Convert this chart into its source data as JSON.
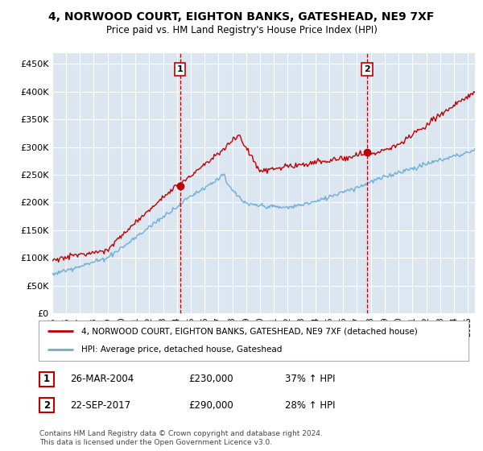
{
  "title": "4, NORWOOD COURT, EIGHTON BANKS, GATESHEAD, NE9 7XF",
  "subtitle": "Price paid vs. HM Land Registry's House Price Index (HPI)",
  "ylabel_ticks": [
    "£0",
    "£50K",
    "£100K",
    "£150K",
    "£200K",
    "£250K",
    "£300K",
    "£350K",
    "£400K",
    "£450K"
  ],
  "ytick_values": [
    0,
    50000,
    100000,
    150000,
    200000,
    250000,
    300000,
    350000,
    400000,
    450000
  ],
  "ylim": [
    0,
    470000
  ],
  "xlim_start": 1995.0,
  "xlim_end": 2025.5,
  "sale1_x": 2004.23,
  "sale1_y": 230000,
  "sale2_x": 2017.73,
  "sale2_y": 290000,
  "hpi_color": "#6baed6",
  "price_color": "#c00000",
  "legend_label1": "4, NORWOOD COURT, EIGHTON BANKS, GATESHEAD, NE9 7XF (detached house)",
  "legend_label2": "HPI: Average price, detached house, Gateshead",
  "table_row1": [
    "1",
    "26-MAR-2004",
    "£230,000",
    "37% ↑ HPI"
  ],
  "table_row2": [
    "2",
    "22-SEP-2017",
    "£290,000",
    "28% ↑ HPI"
  ],
  "footer": "Contains HM Land Registry data © Crown copyright and database right 2024.\nThis data is licensed under the Open Government Licence v3.0.",
  "bg_color": "#ffffff",
  "plot_bg_color": "#dce6f1"
}
